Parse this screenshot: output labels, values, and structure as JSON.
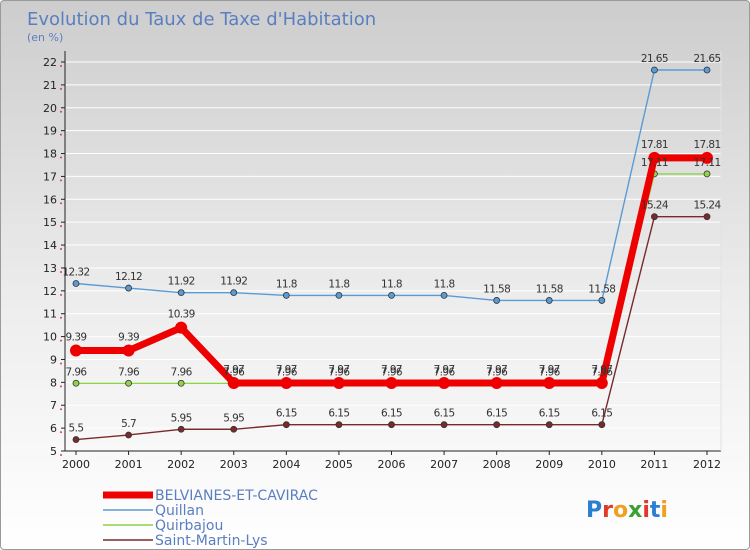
{
  "chart_data": {
    "type": "line",
    "title": "Evolution du Taux de Taxe d'Habitation",
    "subtitle": "(en %)",
    "x": [
      "2000",
      "2001",
      "2002",
      "2003",
      "2004",
      "2005",
      "2006",
      "2007",
      "2008",
      "2009",
      "2010",
      "2011",
      "2012"
    ],
    "ylim": [
      5,
      22
    ],
    "yticks": [
      "5",
      "6",
      "7",
      "8",
      "9",
      "10",
      "11",
      "12",
      "13",
      "14",
      "15",
      "16",
      "17",
      "18",
      "19",
      "20",
      "21",
      "22"
    ],
    "grid": true,
    "legend_position": "bottom-left",
    "series": [
      {
        "name": "BELVIANES-ET-CAVIRAC",
        "color": "#ee0000",
        "values": [
          9.39,
          9.39,
          10.39,
          7.97,
          7.97,
          7.97,
          7.97,
          7.97,
          7.97,
          7.97,
          7.97,
          17.81,
          17.81
        ],
        "labels": [
          "9.39",
          "9.39",
          "10.39",
          "7.97",
          "7.97",
          "7.97",
          "7.97",
          "7.97",
          "7.97",
          "7.97",
          "7.97",
          "17.81",
          "17.81"
        ]
      },
      {
        "name": "Quillan",
        "color": "#5b9bd5",
        "values": [
          12.32,
          12.12,
          11.92,
          11.92,
          11.8,
          11.8,
          11.8,
          11.8,
          11.58,
          11.58,
          11.58,
          21.65,
          21.65
        ],
        "labels": [
          "12.32",
          "12.12",
          "11.92",
          "11.92",
          "11.8",
          "11.8",
          "11.8",
          "11.8",
          "11.58",
          "11.58",
          "11.58",
          "21.65",
          "21.65"
        ]
      },
      {
        "name": "Quirbajou",
        "color": "#8ed448",
        "values": [
          7.96,
          7.96,
          7.96,
          7.96,
          7.96,
          7.96,
          7.96,
          7.96,
          7.96,
          7.96,
          7.96,
          17.11,
          17.11
        ],
        "labels": [
          "7.96",
          "7.96",
          "7.96",
          "7.96",
          "7.96",
          "7.96",
          "7.96",
          "7.96",
          "7.96",
          "7.96",
          "7.96",
          "17.11",
          "17.11"
        ]
      },
      {
        "name": "Saint-Martin-Lys",
        "color": "#7a2a2a",
        "values": [
          5.5,
          5.7,
          5.95,
          5.95,
          6.15,
          6.15,
          6.15,
          6.15,
          6.15,
          6.15,
          6.15,
          15.24,
          15.24
        ],
        "labels": [
          "5.5",
          "5.7",
          "5.95",
          "5.95",
          "6.15",
          "6.15",
          "6.15",
          "6.15",
          "6.15",
          "6.15",
          "6.15",
          "15.24",
          "15.24"
        ]
      }
    ]
  },
  "logo": {
    "text": "Proxiti",
    "letters": [
      "P",
      "r",
      "o",
      "x",
      "i",
      "t",
      "i"
    ],
    "colors": [
      "#2a7fd0",
      "#e03a2a",
      "#f0a020",
      "#3aa030",
      "#e03a2a",
      "#2a7fd0",
      "#f0a020"
    ]
  }
}
